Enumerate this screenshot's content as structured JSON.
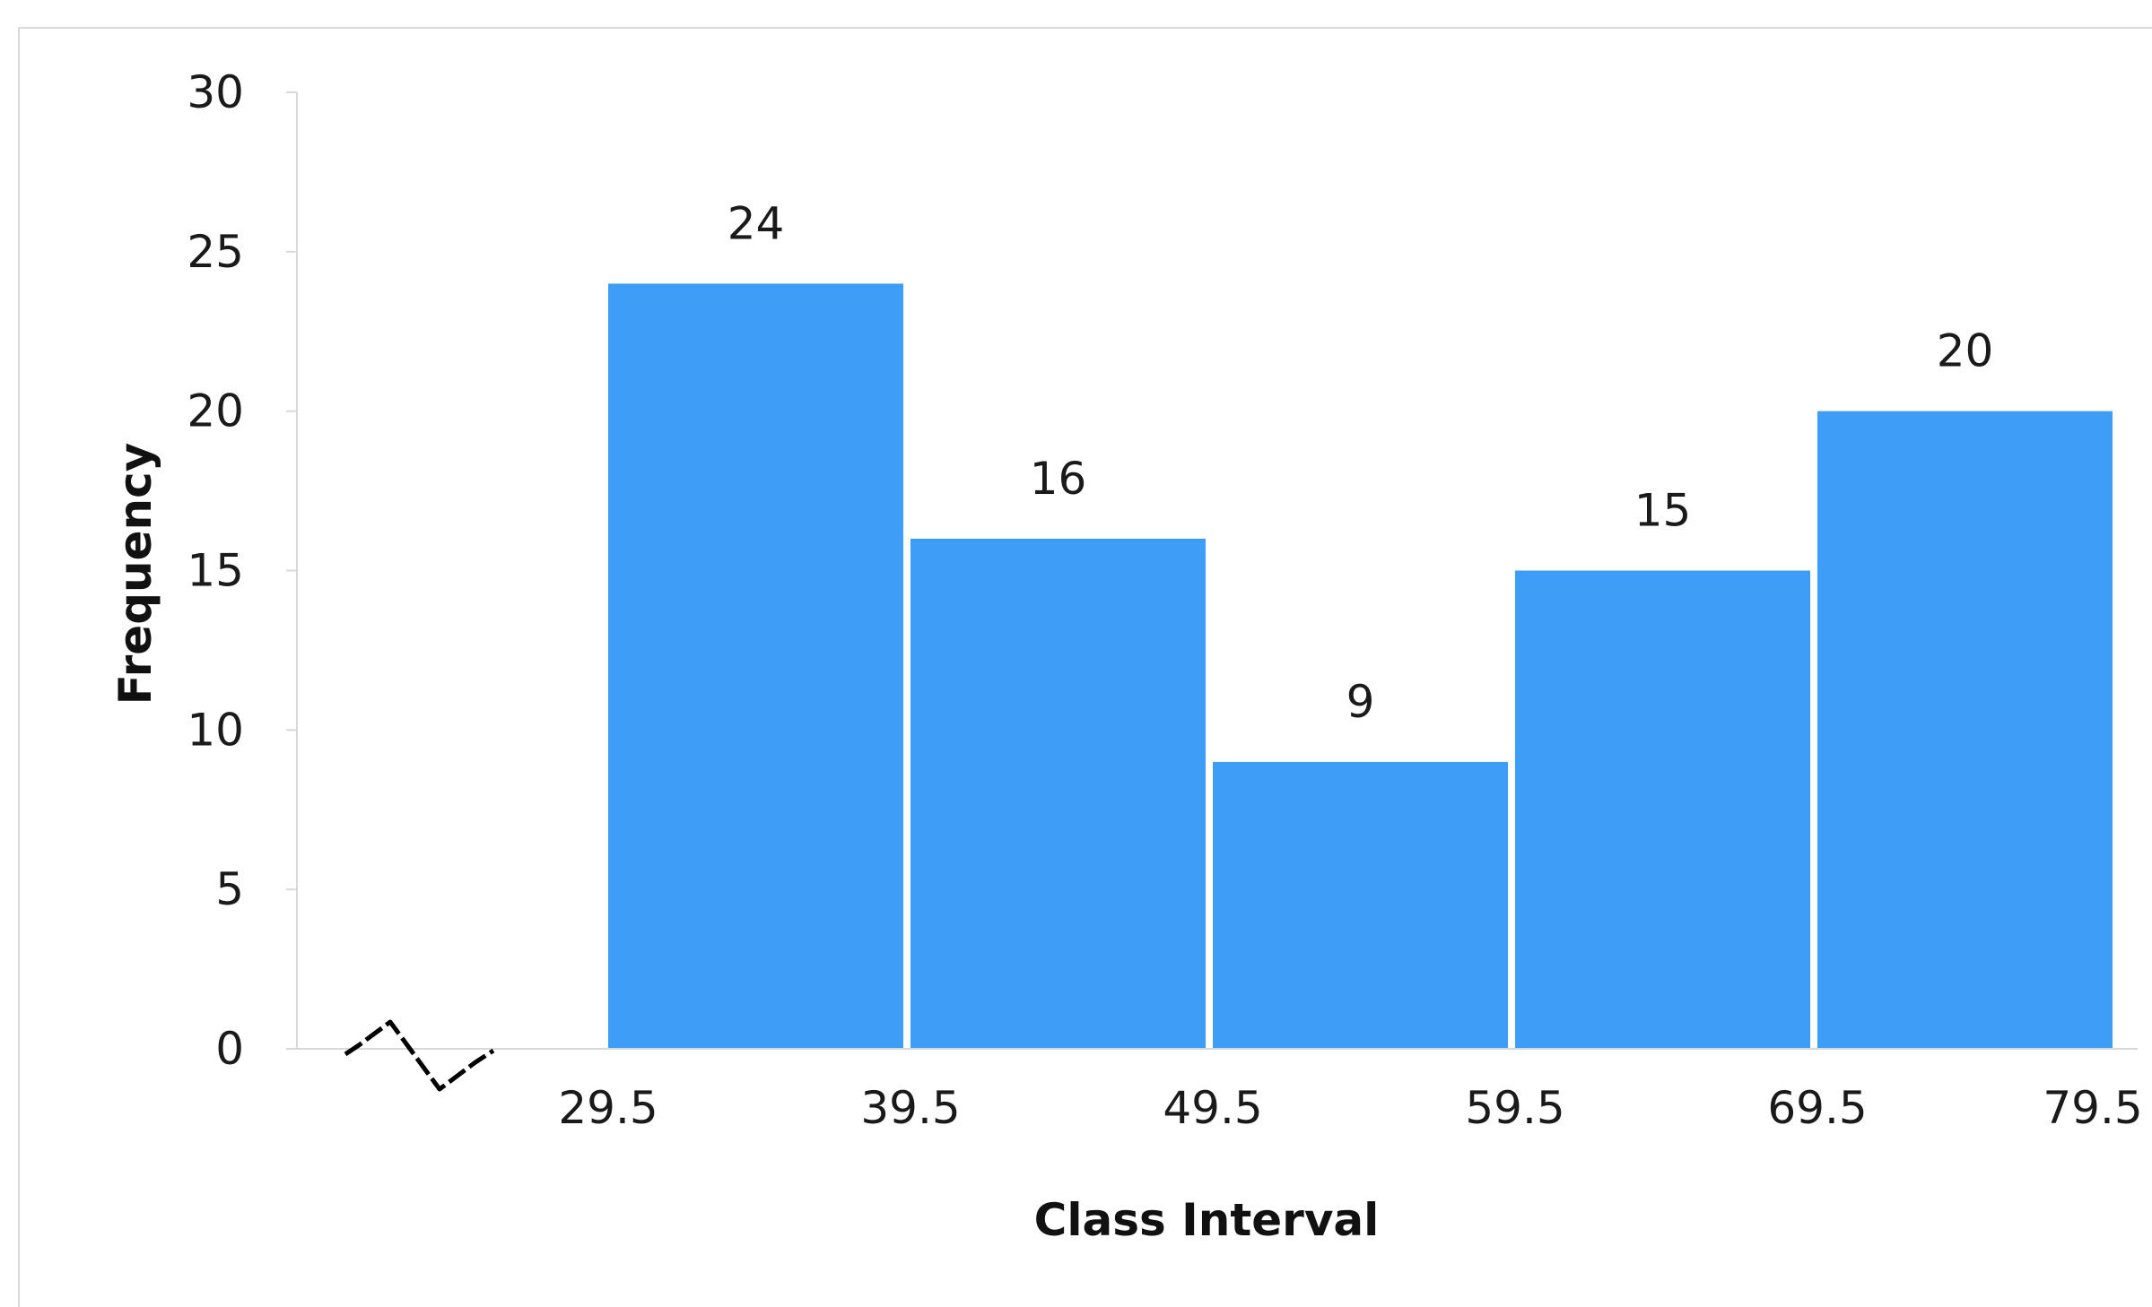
{
  "chart_data": {
    "type": "bar",
    "histogram": true,
    "bin_edges": [
      29.5,
      39.5,
      49.5,
      59.5,
      69.5,
      79.5
    ],
    "x_tick_labels": [
      "29.5",
      "39.5",
      "49.5",
      "59.5",
      "69.5",
      "79.5"
    ],
    "values": [
      24,
      16,
      9,
      15,
      20
    ],
    "data_labels": [
      "24",
      "16",
      "9",
      "15",
      "20"
    ],
    "title": "",
    "xlabel": "Class Interval",
    "ylabel": "Frequency",
    "ylim": [
      0,
      30
    ],
    "y_ticks": [
      0,
      5,
      10,
      15,
      20,
      25,
      30
    ],
    "y_tick_labels": [
      "0",
      "5",
      "10",
      "15",
      "20",
      "25",
      "30"
    ],
    "axis_break": true,
    "grid": false,
    "legend": "none",
    "bar_color": "#3d9df7",
    "axis_color": "#d9d9d9"
  }
}
